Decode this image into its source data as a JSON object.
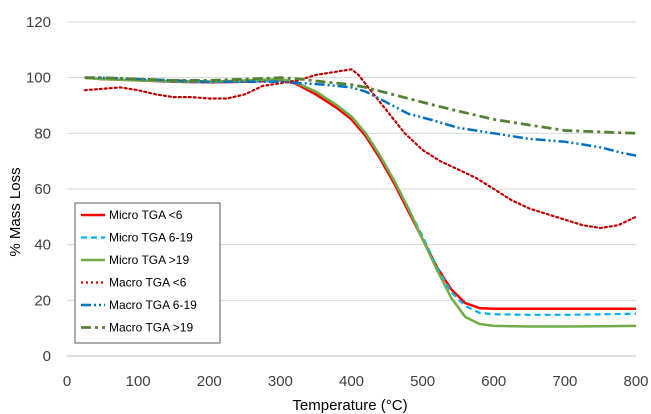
{
  "chart_data": {
    "type": "line",
    "title": "",
    "xlabel": "Temperature (°C)",
    "ylabel": "% Mass Loss",
    "xlim": [
      0,
      800
    ],
    "ylim": [
      0,
      120
    ],
    "xticks": [
      0,
      100,
      200,
      300,
      400,
      500,
      600,
      700,
      800
    ],
    "yticks": [
      0,
      20,
      40,
      60,
      80,
      100,
      120
    ],
    "grid": "horizontal",
    "legend_position": "lower-left",
    "series": [
      {
        "name": "Micro TGA <6",
        "color": "#ff0000",
        "style": "solid",
        "x": [
          25,
          50,
          100,
          150,
          200,
          250,
          300,
          320,
          350,
          380,
          400,
          420,
          440,
          460,
          480,
          500,
          520,
          540,
          560,
          580,
          600,
          650,
          700,
          750,
          800
        ],
        "y": [
          100,
          99.5,
          99,
          98.5,
          98.3,
          98.5,
          99,
          98,
          94,
          89,
          85,
          79,
          71,
          62,
          52,
          42,
          32,
          24,
          19,
          17.2,
          17,
          17,
          17,
          17,
          17
        ]
      },
      {
        "name": "Micro TGA 6-19",
        "color": "#00b0f0",
        "style": "dashed",
        "x": [
          25,
          50,
          100,
          150,
          200,
          250,
          300,
          320,
          350,
          380,
          400,
          420,
          440,
          460,
          480,
          500,
          520,
          540,
          560,
          580,
          600,
          650,
          700,
          750,
          800
        ],
        "y": [
          100,
          99.5,
          99,
          98.5,
          98.3,
          98.5,
          99,
          98.3,
          95,
          90,
          86,
          80,
          72,
          63,
          53,
          43,
          32,
          23,
          18,
          15.5,
          15,
          14.8,
          14.8,
          15,
          15.2
        ]
      },
      {
        "name": "Micro TGA >19",
        "color": "#70ad47",
        "style": "solid",
        "x": [
          25,
          50,
          100,
          150,
          200,
          250,
          300,
          320,
          350,
          380,
          400,
          420,
          440,
          460,
          480,
          500,
          520,
          540,
          560,
          580,
          600,
          650,
          700,
          750,
          800
        ],
        "y": [
          100,
          99.5,
          99,
          98.8,
          98.6,
          99,
          99.5,
          98.5,
          95,
          90,
          86,
          80,
          72,
          63,
          53,
          42,
          31,
          21,
          14,
          11.5,
          10.8,
          10.6,
          10.6,
          10.7,
          10.8
        ]
      },
      {
        "name": "Macro TGA <6",
        "color": "#c00000",
        "style": "dotted",
        "x": [
          25,
          50,
          75,
          100,
          125,
          150,
          175,
          200,
          225,
          250,
          275,
          300,
          325,
          350,
          375,
          400,
          410,
          425,
          450,
          475,
          500,
          525,
          550,
          575,
          600,
          625,
          650,
          675,
          700,
          725,
          750,
          775,
          800
        ],
        "y": [
          95.5,
          96,
          96.5,
          95.5,
          94,
          93,
          93,
          92.5,
          92.5,
          94,
          97,
          98,
          99,
          101,
          102,
          103,
          101,
          96,
          88,
          80,
          74,
          70,
          67,
          64,
          60,
          56,
          53,
          51,
          49,
          47,
          46,
          47,
          50
        ]
      },
      {
        "name": "Macro TGA 6-19",
        "color": "#0070c0",
        "style": "dash-dot-dot",
        "x": [
          25,
          50,
          100,
          150,
          200,
          250,
          300,
          330,
          360,
          380,
          400,
          420,
          450,
          480,
          510,
          550,
          600,
          650,
          700,
          750,
          780,
          800
        ],
        "y": [
          100,
          100,
          99.5,
          99,
          98.5,
          98.5,
          98.5,
          98,
          97.5,
          97,
          96.5,
          95,
          91,
          87,
          85,
          82,
          80,
          78,
          77,
          75,
          73,
          72
        ]
      },
      {
        "name": "Macro TGA >19",
        "color": "#548235",
        "style": "dash-dot",
        "x": [
          25,
          50,
          100,
          150,
          200,
          250,
          300,
          330,
          360,
          380,
          400,
          420,
          450,
          480,
          510,
          550,
          600,
          650,
          700,
          750,
          800
        ],
        "y": [
          100,
          100,
          99.5,
          99,
          99,
          99.5,
          100,
          99.5,
          98.5,
          98,
          97.5,
          96.5,
          94.5,
          92.5,
          90.5,
          88,
          85,
          83,
          81,
          80.5,
          80
        ]
      }
    ]
  }
}
